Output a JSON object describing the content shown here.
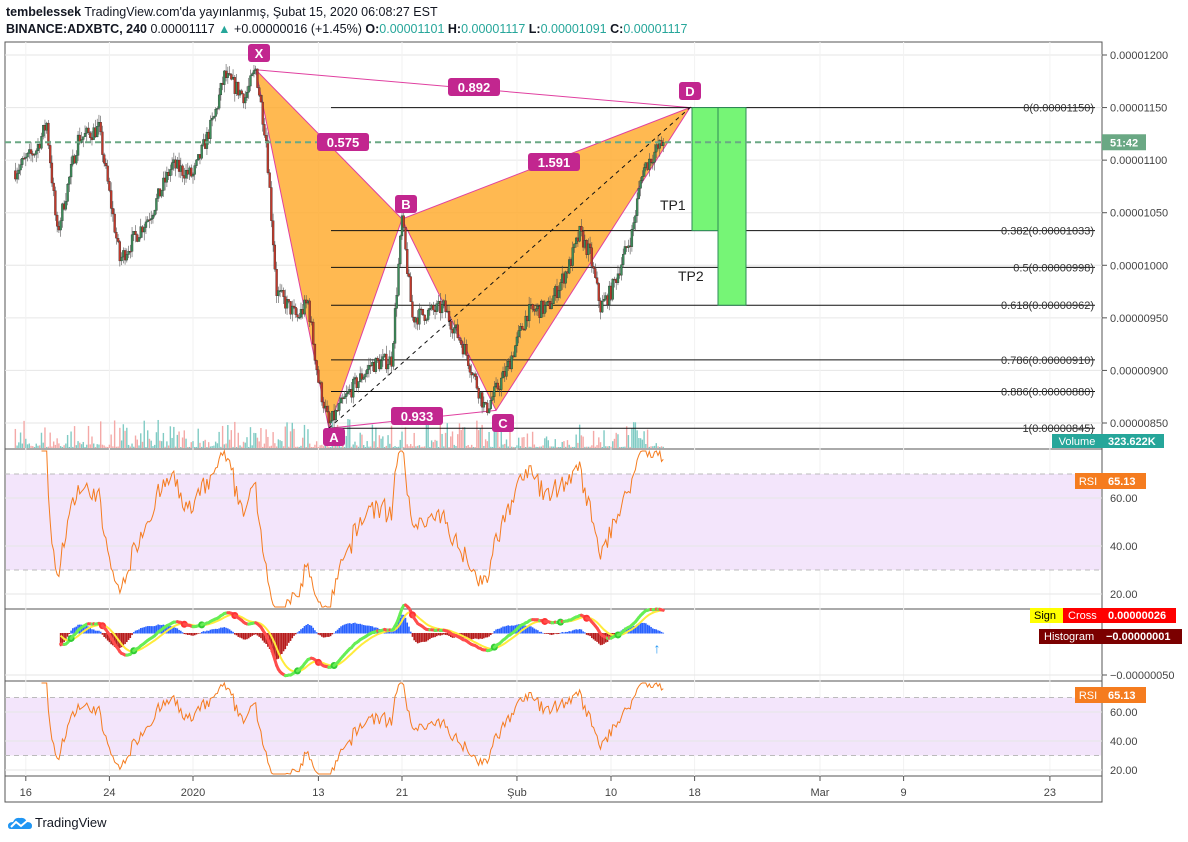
{
  "header": {
    "author": "tembelessek",
    "published": "TradingView.com'da yayınlanmış, Şubat 15, 2020 06:08:27 EST",
    "symbol": "BINANCE:ADXBTC, 240",
    "last": "0.00001117",
    "change": "+0.00000016 (+1.45%)",
    "o_label": "O:",
    "o": "0.00001101",
    "h_label": "H:",
    "h": "0.00001117",
    "l_label": "L:",
    "l": "0.00001091",
    "c_label": "C:",
    "c": "0.00001117"
  },
  "colors": {
    "up": "#26a69a",
    "down": "#ef5350",
    "pattern_fill": "#ffa726",
    "pattern_line": "#e040a0",
    "label_bg": "#c2268f",
    "target_fill": "#76f576",
    "rsi": "#f57c1f",
    "last_price": "#6aa884"
  },
  "price_axis": {
    "ticks": [
      "0.00001200",
      "0.00001150",
      "0.00001100",
      "0.00001050",
      "0.00001000",
      "0.00000950",
      "0.00000900",
      "0.00000850"
    ],
    "countdown": "51:42",
    "volume_label": "Volume",
    "volume_value": "323.622K"
  },
  "rsi1": {
    "label": "RSI",
    "value": "65.13",
    "ticks": [
      "60.00",
      "40.00",
      "20.00"
    ]
  },
  "macd": {
    "sign_label": "Sign",
    "cross_label": "Cross",
    "cross_value": "0.00000026",
    "hist_label": "Histogram",
    "hist_value": "−0.00000001",
    "ticks": [
      "−0.00000050"
    ]
  },
  "rsi2": {
    "label": "RSI",
    "value": "65.13",
    "ticks": [
      "60.00",
      "40.00",
      "20.00"
    ]
  },
  "time_axis": {
    "ticks": [
      {
        "label": "16",
        "date": "2019-12-16"
      },
      {
        "label": "24",
        "date": "2019-12-24"
      },
      {
        "label": "2020",
        "date": "2020-01-01"
      },
      {
        "label": "13",
        "date": "2020-01-13"
      },
      {
        "label": "21",
        "date": "2020-01-21"
      },
      {
        "label": "Şub",
        "date": "2020-02-01"
      },
      {
        "label": "10",
        "date": "2020-02-10"
      },
      {
        "label": "18",
        "date": "2020-02-18"
      },
      {
        "label": "Mar",
        "date": "2020-03-01"
      },
      {
        "label": "9",
        "date": "2020-03-09"
      },
      {
        "label": "23",
        "date": "2020-03-23"
      }
    ]
  },
  "brand": "TradingView",
  "chart_data": {
    "type": "candlestick",
    "interval": "240",
    "ylim": [
      8.3e-06,
      1.22e-05
    ],
    "close_path": [
      [
        "2019-12-15",
        1.09e-05
      ],
      [
        "2019-12-17",
        1.11e-05
      ],
      [
        "2019-12-18",
        1.135e-05
      ],
      [
        "2019-12-19",
        1.03e-05
      ],
      [
        "2019-12-21",
        1.12e-05
      ],
      [
        "2019-12-23",
        1.13e-05
      ],
      [
        "2019-12-25",
        1.005e-05
      ],
      [
        "2019-12-28",
        1.05e-05
      ],
      [
        "2019-12-30",
        1.095e-05
      ],
      [
        "2020-01-01",
        1.085e-05
      ],
      [
        "2020-01-03",
        1.14e-05
      ],
      [
        "2020-01-04",
        1.18e-05
      ],
      [
        "2020-01-06",
        1.16e-05
      ],
      [
        "2020-01-07",
        1.186e-05
      ],
      [
        "2020-01-08",
        1.12e-05
      ],
      [
        "2020-01-09",
        9.75e-06
      ],
      [
        "2020-01-11",
        9.5e-06
      ],
      [
        "2020-01-12",
        9.65e-06
      ],
      [
        "2020-01-13",
        8.9e-06
      ],
      [
        "2020-01-14",
        8.48e-06
      ],
      [
        "2020-01-16",
        8.8e-06
      ],
      [
        "2020-01-18",
        9.05e-06
      ],
      [
        "2020-01-20",
        9.1e-06
      ],
      [
        "2020-01-21",
        1.044e-05
      ],
      [
        "2020-01-22",
        9.5e-06
      ],
      [
        "2020-01-25",
        9.6e-06
      ],
      [
        "2020-01-27",
        9.2e-06
      ],
      [
        "2020-01-29",
        8.62e-06
      ],
      [
        "2020-01-31",
        9e-06
      ],
      [
        "2020-02-02",
        9.55e-06
      ],
      [
        "2020-02-04",
        9.6e-06
      ],
      [
        "2020-02-06",
        1e-05
      ],
      [
        "2020-02-07",
        1.03e-05
      ],
      [
        "2020-02-08",
        1.01e-05
      ],
      [
        "2020-02-09",
        9.6e-06
      ],
      [
        "2020-02-10",
        9.75e-06
      ],
      [
        "2020-02-12",
        1.03e-05
      ],
      [
        "2020-02-13",
        1.09e-05
      ],
      [
        "2020-02-14",
        1.105e-05
      ],
      [
        "2020-02-15",
        1.117e-05
      ]
    ],
    "pattern": {
      "points": [
        {
          "label": "X",
          "date": "2020-01-07",
          "price": 1.186e-05
        },
        {
          "label": "A",
          "date": "2020-01-14",
          "price": 8.45e-06
        },
        {
          "label": "B",
          "date": "2020-01-21",
          "price": 1.044e-05
        },
        {
          "label": "C",
          "date": "2020-01-30",
          "price": 8.62e-06
        },
        {
          "label": "D",
          "date": "2020-02-16",
          "price": 1.15e-05
        }
      ],
      "ratios": [
        {
          "label": "0.575",
          "between": "XB"
        },
        {
          "label": "1.591",
          "between": "BD"
        },
        {
          "label": "0.933",
          "between": "AC"
        },
        {
          "label": "0.892",
          "between": "XD"
        }
      ]
    },
    "fib_levels": [
      {
        "label": "0(0.00001150)",
        "price": 1.15e-05
      },
      {
        "label": "0.382(0.00001033)",
        "price": 1.033e-05
      },
      {
        "label": "0.5(0.00000998)",
        "price": 9.98e-06
      },
      {
        "label": "0.618(0.00000962)",
        "price": 9.62e-06
      },
      {
        "label": "0.786(0.00000910)",
        "price": 9.1e-06
      },
      {
        "label": "0.886(0.00000880)",
        "price": 8.8e-06
      },
      {
        "label": "1(0.00000845)",
        "price": 8.45e-06
      }
    ],
    "targets": [
      {
        "label": "TP1",
        "from": 1.15e-05,
        "to": 1.033e-05
      },
      {
        "label": "TP2",
        "from": 1.15e-05,
        "to": 9.62e-06
      }
    ],
    "last_price": 1.117e-05
  }
}
